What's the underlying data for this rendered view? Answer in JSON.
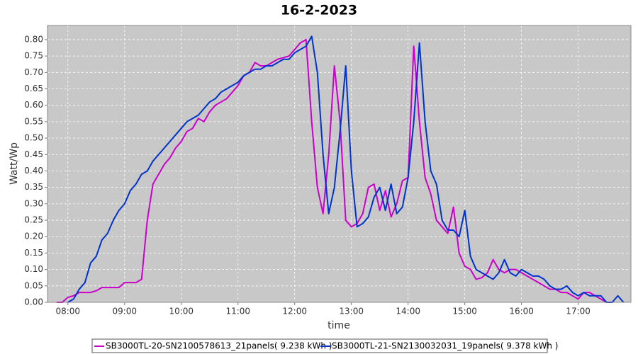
{
  "chart_data": {
    "type": "line",
    "title": "16-2-2023",
    "x_label": "time",
    "y_label": "Watt/Wp",
    "xlim": [
      7.64,
      17.93
    ],
    "ylim": [
      0,
      0.843
    ],
    "grid": true,
    "legend": "bottom",
    "xticks": [
      {
        "value": 8,
        "label": "08:00"
      },
      {
        "value": 9,
        "label": "09:00"
      },
      {
        "value": 10,
        "label": "10:00"
      },
      {
        "value": 11,
        "label": "11:00"
      },
      {
        "value": 12,
        "label": "12:00"
      },
      {
        "value": 13,
        "label": "13:00"
      },
      {
        "value": 14,
        "label": "14:00"
      },
      {
        "value": 15,
        "label": "15:00"
      },
      {
        "value": 16,
        "label": "16:00"
      },
      {
        "value": 17,
        "label": "17:00"
      }
    ],
    "yticks": [
      {
        "value": 0,
        "label": "0.00"
      },
      0.05,
      {
        "value": 0.1,
        "label": "0.10"
      },
      0.15,
      {
        "value": 0.2,
        "label": "0.20"
      },
      0.25,
      {
        "value": 0.3,
        "label": "0.30"
      },
      0.35,
      {
        "value": 0.4,
        "label": "0.40"
      },
      0.45,
      {
        "value": 0.5,
        "label": "0.50"
      },
      0.55,
      {
        "value": 0.6,
        "label": "0.60"
      },
      0.65,
      {
        "value": 0.7,
        "label": "0.70"
      },
      0.75,
      {
        "value": 0.8,
        "label": "0.80"
      }
    ],
    "x": [
      7.8,
      7.9,
      8.0,
      8.1,
      8.2,
      8.3,
      8.4,
      8.5,
      8.6,
      8.7,
      8.8,
      8.9,
      9.0,
      9.1,
      9.2,
      9.3,
      9.4,
      9.5,
      9.6,
      9.7,
      9.8,
      9.9,
      10.0,
      10.1,
      10.2,
      10.3,
      10.4,
      10.5,
      10.6,
      10.7,
      10.8,
      10.9,
      11.0,
      11.1,
      11.2,
      11.3,
      11.4,
      11.5,
      11.6,
      11.7,
      11.8,
      11.9,
      12.0,
      12.1,
      12.2,
      12.3,
      12.4,
      12.5,
      12.6,
      12.7,
      12.8,
      12.9,
      13.0,
      13.1,
      13.2,
      13.3,
      13.4,
      13.5,
      13.6,
      13.7,
      13.8,
      13.9,
      14.0,
      14.1,
      14.2,
      14.3,
      14.4,
      14.5,
      14.6,
      14.7,
      14.8,
      14.9,
      15.0,
      15.1,
      15.2,
      15.3,
      15.4,
      15.5,
      15.6,
      15.7,
      15.8,
      15.9,
      16.0,
      16.1,
      16.2,
      16.3,
      16.4,
      16.5,
      16.6,
      16.7,
      16.8,
      16.9,
      17.0,
      17.1,
      17.2,
      17.3,
      17.4,
      17.5,
      17.6,
      17.7,
      17.8
    ],
    "series": [
      {
        "name": "SB3000TL-20-SN2100578613_21panels( 9.238 kWh )",
        "color": "#cc00cc",
        "values": [
          0,
          0,
          0.015,
          0.02,
          0.03,
          0.03,
          0.03,
          0.035,
          0.045,
          0.045,
          0.045,
          0.045,
          0.06,
          0.06,
          0.06,
          0.07,
          0.25,
          0.36,
          0.39,
          0.42,
          0.44,
          0.47,
          0.49,
          0.52,
          0.53,
          0.56,
          0.55,
          0.58,
          0.6,
          0.61,
          0.62,
          0.64,
          0.66,
          0.69,
          0.7,
          0.73,
          0.72,
          0.72,
          0.73,
          0.74,
          0.745,
          0.75,
          0.77,
          0.79,
          0.8,
          0.55,
          0.35,
          0.27,
          0.45,
          0.72,
          0.55,
          0.25,
          0.23,
          0.24,
          0.27,
          0.35,
          0.36,
          0.28,
          0.34,
          0.26,
          0.3,
          0.37,
          0.38,
          0.78,
          0.55,
          0.38,
          0.33,
          0.25,
          0.23,
          0.21,
          0.29,
          0.15,
          0.11,
          0.1,
          0.07,
          0.075,
          0.09,
          0.13,
          0.1,
          0.09,
          0.1,
          0.1,
          0.09,
          0.08,
          0.07,
          0.06,
          0.05,
          0.04,
          0.04,
          0.03,
          0.03,
          0.02,
          0.01,
          0.03,
          0.03,
          0.02,
          0.01,
          0,
          null,
          null,
          null
        ]
      },
      {
        "name": "SB3000TL-21-SN2130032031_19panels( 9.378 kWh )",
        "color": "#0033cc",
        "values": [
          null,
          null,
          0,
          0.01,
          0.04,
          0.06,
          0.12,
          0.14,
          0.19,
          0.21,
          0.25,
          0.28,
          0.3,
          0.34,
          0.36,
          0.39,
          0.4,
          0.43,
          0.45,
          0.47,
          0.49,
          0.51,
          0.53,
          0.55,
          0.56,
          0.57,
          0.59,
          0.61,
          0.62,
          0.64,
          0.65,
          0.66,
          0.67,
          0.69,
          0.7,
          0.71,
          0.71,
          0.72,
          0.72,
          0.73,
          0.74,
          0.74,
          0.76,
          0.77,
          0.78,
          0.81,
          0.7,
          0.45,
          0.27,
          0.35,
          0.52,
          0.72,
          0.4,
          0.23,
          0.24,
          0.26,
          0.32,
          0.35,
          0.28,
          0.36,
          0.27,
          0.29,
          0.38,
          0.55,
          0.79,
          0.55,
          0.4,
          0.36,
          0.25,
          0.22,
          0.22,
          0.2,
          0.28,
          0.14,
          0.1,
          0.09,
          0.08,
          0.07,
          0.09,
          0.13,
          0.09,
          0.08,
          0.1,
          0.09,
          0.08,
          0.08,
          0.07,
          0.05,
          0.04,
          0.04,
          0.05,
          0.03,
          0.02,
          0.03,
          0.02,
          0.02,
          0.02,
          0,
          0,
          0.02,
          0
        ]
      }
    ]
  }
}
